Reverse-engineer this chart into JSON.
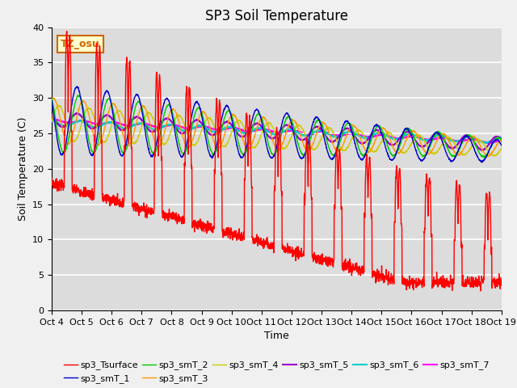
{
  "title": "SP3 Soil Temperature",
  "xlabel": "Time",
  "ylabel": "Soil Temperature (C)",
  "ylim": [
    0,
    40
  ],
  "yticks": [
    0,
    5,
    10,
    15,
    20,
    25,
    30,
    35,
    40
  ],
  "xtick_labels": [
    "Oct 4",
    "Oct 5",
    "Oct 6",
    "Oct 7",
    "Oct 8",
    "Oct 9",
    "Oct 10",
    "Oct 11",
    "Oct 12",
    "Oct 13",
    "Oct 14",
    "Oct 15",
    "Oct 16",
    "Oct 17",
    "Oct 18",
    "Oct 19"
  ],
  "bg_color": "#dcdcdc",
  "fig_color": "#f0f0f0",
  "annotation_text": "TZ_osu",
  "annotation_bg": "#ffffcc",
  "annotation_border": "#cc6600",
  "series_colors": {
    "sp3_Tsurface": "#ff0000",
    "sp3_smT_1": "#0000cc",
    "sp3_smT_2": "#00cc00",
    "sp3_smT_3": "#ff9900",
    "sp3_smT_4": "#cccc00",
    "sp3_smT_5": "#9900cc",
    "sp3_smT_6": "#00cccc",
    "sp3_smT_7": "#ff00ff"
  },
  "legend_fontsize": 8,
  "title_fontsize": 12,
  "tick_fontsize": 8
}
